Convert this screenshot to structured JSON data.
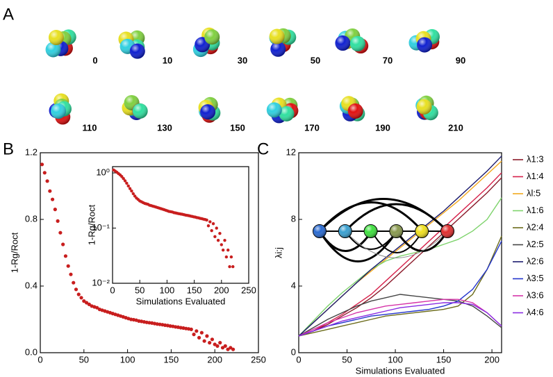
{
  "panels": [
    "A",
    "B",
    "C"
  ],
  "snapshots": [
    "0",
    "10",
    "30",
    "50",
    "70",
    "90",
    "110",
    "130",
    "150",
    "170",
    "190",
    "210"
  ],
  "chart_data": [
    {
      "type": "scatter",
      "ylabel": "1-Rg/Roct",
      "color": "#c81e1e",
      "x": [
        2,
        5,
        8,
        11,
        14,
        17,
        20,
        23,
        26,
        29,
        32,
        35,
        38,
        41,
        44,
        47,
        50,
        53,
        56,
        59,
        62,
        65,
        68,
        71,
        74,
        77,
        80,
        83,
        86,
        89,
        92,
        95,
        98,
        101,
        104,
        107,
        110,
        113,
        116,
        119,
        122,
        125,
        128,
        131,
        134,
        137,
        140,
        143,
        146,
        149,
        152,
        155,
        158,
        161,
        164,
        167,
        170,
        173,
        176,
        179,
        182,
        185,
        188,
        191,
        194,
        197,
        200,
        203,
        206,
        209,
        212,
        215,
        218,
        221
      ],
      "values": [
        1.13,
        1.08,
        1.03,
        0.97,
        0.92,
        0.86,
        0.79,
        0.72,
        0.65,
        0.58,
        0.52,
        0.47,
        0.42,
        0.38,
        0.35,
        0.33,
        0.31,
        0.3,
        0.29,
        0.28,
        0.275,
        0.27,
        0.26,
        0.255,
        0.25,
        0.245,
        0.24,
        0.235,
        0.23,
        0.225,
        0.22,
        0.215,
        0.21,
        0.205,
        0.2,
        0.198,
        0.195,
        0.19,
        0.188,
        0.185,
        0.182,
        0.18,
        0.178,
        0.175,
        0.172,
        0.17,
        0.168,
        0.165,
        0.163,
        0.16,
        0.158,
        0.155,
        0.153,
        0.15,
        0.148,
        0.145,
        0.143,
        0.14,
        0.11,
        0.13,
        0.09,
        0.12,
        0.07,
        0.1,
        0.06,
        0.08,
        0.05,
        0.04,
        0.06,
        0.03,
        0.04,
        0.02,
        0.03,
        0.02
      ],
      "xlim": [
        0,
        250
      ],
      "xticks": [
        0,
        50,
        100,
        150,
        200,
        250
      ],
      "ylim": [
        0,
        1.2
      ],
      "yticks": [
        {
          "value": 0,
          "label": "0.0"
        },
        0.4,
        0.8,
        1.2
      ]
    },
    {
      "type": "scatter-inset",
      "ylabel": "1-Rg/Roct",
      "xlabel": "Simulations Evaluated",
      "log_y": true,
      "xlim": [
        0,
        250
      ],
      "xticks": [
        0,
        50,
        100,
        150,
        200,
        250
      ],
      "ylim": [
        0.01,
        1.3
      ],
      "yticks": [
        {
          "value": 1,
          "label": "10⁰"
        },
        {
          "value": 0.1,
          "label": "10⁻¹"
        },
        {
          "value": 0.01,
          "label": "10⁻²"
        }
      ]
    },
    {
      "type": "line",
      "ylabel": "λi:j",
      "xlabel": "Simulations Evaluated",
      "x": [
        0,
        15,
        30,
        45,
        60,
        75,
        90,
        105,
        120,
        135,
        150,
        165,
        180,
        195,
        210
      ],
      "xlim": [
        0,
        210
      ],
      "xticks": [
        0,
        50,
        100,
        150,
        200
      ],
      "ylim": [
        0,
        12
      ],
      "yticks": [
        0,
        4,
        8,
        12
      ],
      "series": [
        {
          "name": "λ1:3",
          "color": "#8b1a2a",
          "values": [
            1,
            1.3,
            1.7,
            2.2,
            2.7,
            3.3,
            4,
            4.8,
            5.6,
            6.4,
            7.2,
            8,
            8.8,
            9.6,
            10.5
          ]
        },
        {
          "name": "λ1:4",
          "color": "#d6204a",
          "values": [
            1,
            1.3,
            1.8,
            2.3,
            2.9,
            3.5,
            4.3,
            5.1,
            5.9,
            6.7,
            7.5,
            8.3,
            9.1,
            9.9,
            10.8
          ]
        },
        {
          "name": "λl:5",
          "color": "#f2a81d",
          "values": [
            1,
            1.8,
            2.6,
            3.4,
            4.2,
            4.9,
            5.6,
            6.3,
            7,
            7.7,
            8.4,
            9.1,
            9.9,
            10.7,
            11.5
          ]
        },
        {
          "name": "λ1:6",
          "color": "#7ed36c",
          "values": [
            1,
            1.9,
            2.8,
            3.6,
            4.3,
            5,
            5.5,
            5.8,
            6,
            6.2,
            6.5,
            6.8,
            7.3,
            8,
            9.3
          ]
        },
        {
          "name": "λ2:4",
          "color": "#6b6b1a",
          "values": [
            1,
            1.2,
            1.4,
            1.6,
            1.8,
            2,
            2.2,
            2.3,
            2.4,
            2.5,
            2.6,
            2.8,
            3.5,
            5,
            7
          ]
        },
        {
          "name": "λ2:5",
          "color": "#444444",
          "values": [
            1,
            1.5,
            2,
            2.4,
            2.8,
            3.1,
            3.3,
            3.5,
            3.4,
            3.3,
            3.2,
            3.1,
            2.8,
            2.2,
            1.5
          ]
        },
        {
          "name": "λ2:6",
          "color": "#1a1a6e",
          "values": [
            1,
            1.8,
            2.6,
            3.4,
            4.2,
            5,
            5.7,
            6.4,
            7.1,
            7.8,
            8.5,
            9.3,
            10.1,
            10.9,
            11.8
          ]
        },
        {
          "name": "λ3:5",
          "color": "#2233cc",
          "values": [
            1,
            1.3,
            1.6,
            1.8,
            2,
            2.2,
            2.3,
            2.4,
            2.5,
            2.6,
            2.8,
            3.1,
            3.8,
            5,
            6.7
          ]
        },
        {
          "name": "λ3:6",
          "color": "#d633a8",
          "values": [
            1,
            1.4,
            1.8,
            2.1,
            2.4,
            2.6,
            2.8,
            2.9,
            3,
            3.1,
            3.2,
            3.2,
            3,
            2.4,
            1.6
          ]
        },
        {
          "name": "λ4:6",
          "color": "#8a2be2",
          "values": [
            1,
            1.3,
            1.6,
            1.9,
            2.1,
            2.3,
            2.5,
            2.7,
            2.8,
            2.9,
            3,
            3,
            2.9,
            2.4,
            1.6
          ]
        }
      ]
    }
  ]
}
